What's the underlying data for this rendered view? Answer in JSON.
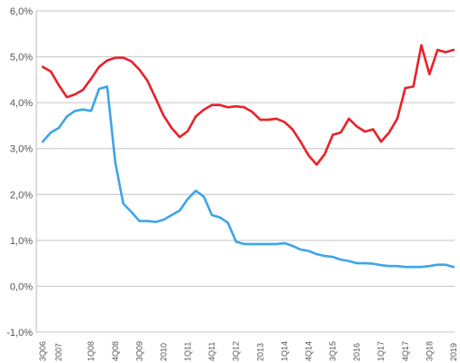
{
  "chart_data": {
    "type": "line",
    "title": "",
    "xlabel": "",
    "ylabel": "",
    "ylim": [
      -1.0,
      6.0
    ],
    "y_ticks": [
      {
        "value": -1.0,
        "label": "-1,0%"
      },
      {
        "value": 0.0,
        "label": "0,0%"
      },
      {
        "value": 1.0,
        "label": "1,0%"
      },
      {
        "value": 2.0,
        "label": "2,0%"
      },
      {
        "value": 3.0,
        "label": "3,0%"
      },
      {
        "value": 4.0,
        "label": "4,0%"
      },
      {
        "value": 5.0,
        "label": "5,0%"
      },
      {
        "value": 6.0,
        "label": "6,0%"
      }
    ],
    "grid": true,
    "legend": "none",
    "x_ticks": [
      {
        "index": 0,
        "label": "3Q06"
      },
      {
        "index": 2,
        "label": "2007"
      },
      {
        "index": 6,
        "label": "1Q08"
      },
      {
        "index": 9,
        "label": "4Q08"
      },
      {
        "index": 12,
        "label": "3Q09"
      },
      {
        "index": 15,
        "label": "2010"
      },
      {
        "index": 18,
        "label": "1Q11"
      },
      {
        "index": 21,
        "label": "4Q11"
      },
      {
        "index": 24,
        "label": "3Q12"
      },
      {
        "index": 27,
        "label": "2013"
      },
      {
        "index": 30,
        "label": "1Q14"
      },
      {
        "index": 33,
        "label": "4Q14"
      },
      {
        "index": 36,
        "label": "3Q15"
      },
      {
        "index": 39,
        "label": "2016"
      },
      {
        "index": 42,
        "label": "1Q17"
      },
      {
        "index": 45,
        "label": "4Q17"
      },
      {
        "index": 48,
        "label": "3Q18"
      },
      {
        "index": 51,
        "label": "2019"
      }
    ],
    "series": [
      {
        "color": "#e8222a",
        "values": [
          4.78,
          4.68,
          4.38,
          4.12,
          4.18,
          4.28,
          4.52,
          4.78,
          4.92,
          4.98,
          4.98,
          4.9,
          4.72,
          4.48,
          4.1,
          3.72,
          3.45,
          3.25,
          3.38,
          3.7,
          3.85,
          3.95,
          3.95,
          3.9,
          3.92,
          3.9,
          3.8,
          3.63,
          3.63,
          3.65,
          3.58,
          3.42,
          3.15,
          2.85,
          2.65,
          2.88,
          3.3,
          3.35,
          3.65,
          3.48,
          3.37,
          3.42,
          3.15,
          3.35,
          3.65,
          4.32,
          4.35,
          5.25,
          4.62,
          5.15,
          5.1,
          5.15
        ]
      },
      {
        "color": "#3ea5e8",
        "values": [
          3.15,
          3.35,
          3.45,
          3.7,
          3.82,
          3.85,
          3.82,
          4.3,
          4.35,
          2.7,
          1.8,
          1.62,
          1.42,
          1.42,
          1.4,
          1.45,
          1.55,
          1.65,
          1.9,
          2.08,
          1.95,
          1.55,
          1.5,
          1.38,
          0.97,
          0.92,
          0.92,
          0.92,
          0.92,
          0.92,
          0.94,
          0.88,
          0.8,
          0.77,
          0.7,
          0.66,
          0.64,
          0.58,
          0.55,
          0.5,
          0.5,
          0.49,
          0.46,
          0.44,
          0.44,
          0.42,
          0.42,
          0.42,
          0.44,
          0.47,
          0.47,
          0.42
        ]
      }
    ]
  }
}
